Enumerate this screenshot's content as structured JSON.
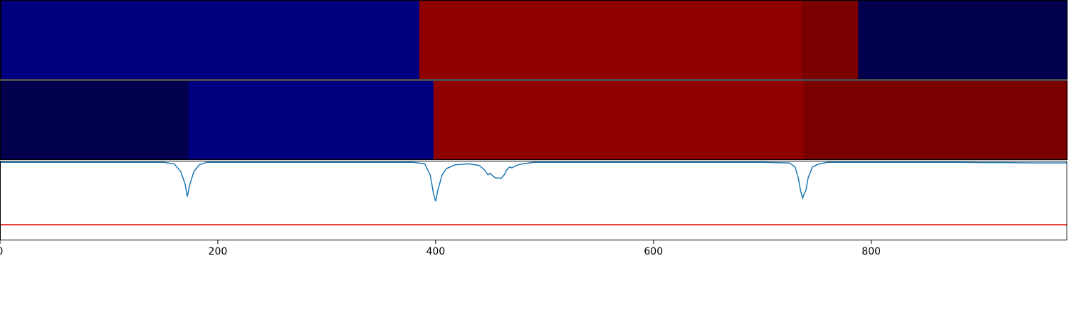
{
  "chart_data": {
    "type": "heatmap",
    "xlim": [
      0,
      980
    ],
    "x_ticks": [
      0,
      200,
      400,
      600,
      800
    ],
    "x_tick_labels": [
      "0",
      "200",
      "400",
      "600",
      "800"
    ],
    "rows": [
      {
        "segments": [
          {
            "start": 0,
            "end": 2,
            "color": "#000050"
          },
          {
            "start": 2,
            "end": 385,
            "color": "#00007f"
          },
          {
            "start": 385,
            "end": 736,
            "color": "#8f0000"
          },
          {
            "start": 736,
            "end": 788,
            "color": "#7a0000"
          },
          {
            "start": 788,
            "end": 980,
            "color": "#00004c"
          }
        ]
      },
      {
        "segments": [
          {
            "start": 0,
            "end": 173,
            "color": "#00004c"
          },
          {
            "start": 173,
            "end": 398,
            "color": "#00007f"
          },
          {
            "start": 398,
            "end": 738,
            "color": "#8f0000"
          },
          {
            "start": 738,
            "end": 980,
            "color": "#7a0000"
          }
        ]
      }
    ],
    "line_panel": {
      "ylim": [
        -2.5,
        0.05
      ],
      "threshold": -2.0,
      "threshold_color": "#dd0000",
      "line_color": "#1f77b4",
      "series": {
        "x": [
          0,
          150,
          160,
          166,
          170,
          172,
          174,
          178,
          183,
          190,
          250,
          380,
          390,
          395,
          398,
          400,
          402,
          406,
          410,
          418,
          430,
          440,
          445,
          448,
          450,
          453,
          455,
          458,
          460,
          463,
          465,
          468,
          470,
          473,
          476,
          480,
          490,
          520,
          700,
          725,
          730,
          733,
          735,
          737,
          738,
          740,
          742,
          746,
          752,
          760,
          880,
          900,
          920,
          950,
          980
        ],
        "y": [
          0,
          0,
          -0.05,
          -0.3,
          -0.7,
          -1.1,
          -0.75,
          -0.3,
          -0.08,
          0,
          0,
          0,
          -0.05,
          -0.4,
          -1.0,
          -1.25,
          -0.9,
          -0.4,
          -0.2,
          -0.08,
          -0.05,
          -0.1,
          -0.25,
          -0.4,
          -0.35,
          -0.45,
          -0.5,
          -0.5,
          -0.52,
          -0.4,
          -0.25,
          -0.15,
          -0.18,
          -0.12,
          -0.08,
          -0.05,
          0,
          0,
          0,
          -0.02,
          -0.15,
          -0.5,
          -0.9,
          -1.15,
          -1.05,
          -0.9,
          -0.5,
          -0.15,
          -0.05,
          0,
          0,
          -0.01,
          -0.01,
          -0.02,
          -0.02
        ]
      }
    }
  }
}
